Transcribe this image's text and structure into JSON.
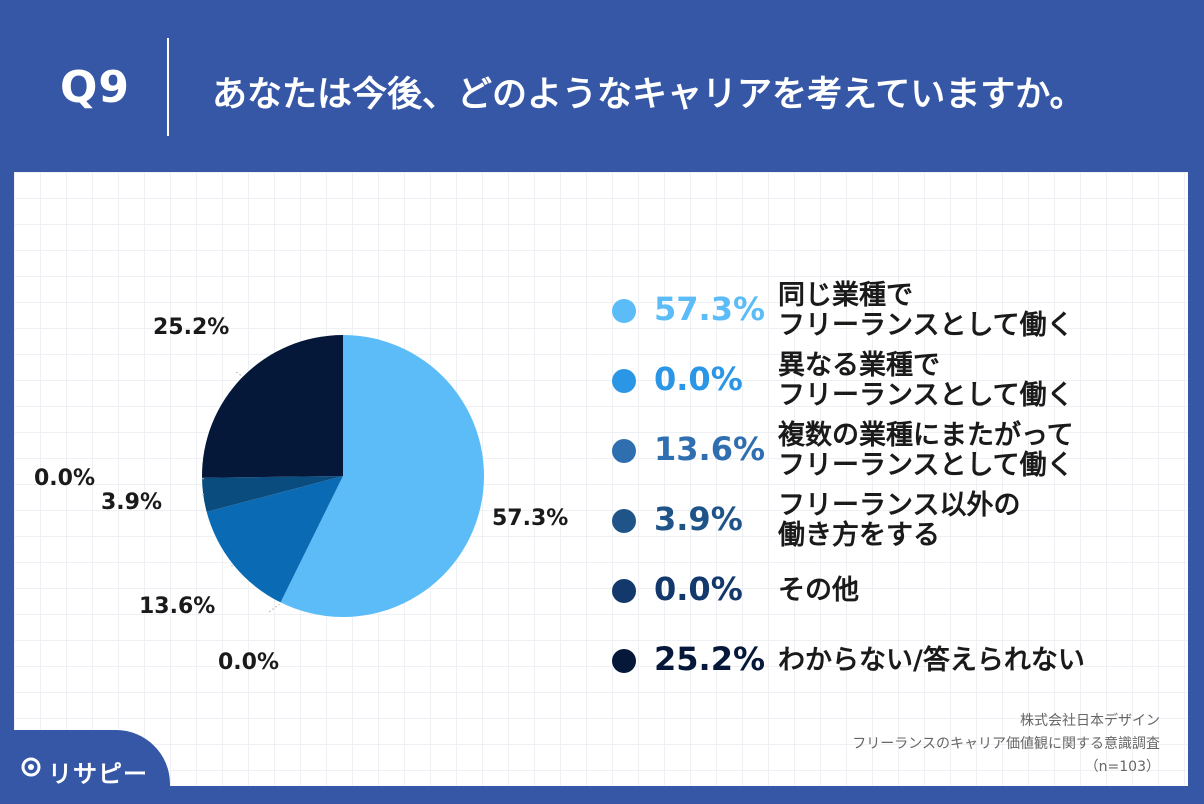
{
  "header": {
    "q_label": "Q9",
    "question": "あなたは今後、どのようなキャリアを考えていますか。"
  },
  "chart_data": {
    "type": "pie",
    "categories": [
      "同じ業種で\nフリーランスとして働く",
      "異なる業種で\nフリーランスとして働く",
      "複数の業種にまたがって\nフリーランスとして働く",
      "フリーランス以外の\n働き方をする",
      "その他",
      "わからない/答えられない"
    ],
    "values": [
      57.3,
      0.0,
      13.6,
      3.9,
      0.0,
      25.2
    ],
    "value_labels": [
      "57.3%",
      "0.0%",
      "13.6%",
      "3.9%",
      "0.0%",
      "25.2%"
    ],
    "colors": [
      "#5bbcf8",
      "#2b96e6",
      "#0a6bb4",
      "#0a4c7e",
      "#0a3465",
      "#05183a"
    ],
    "legend_position": "right",
    "start_angle_deg": 0,
    "direction": "clockwise"
  },
  "legend": [
    {
      "pct": "57.3%",
      "lines": [
        "同じ業種で",
        "フリーランスとして働く"
      ]
    },
    {
      "pct": "0.0%",
      "lines": [
        "異なる業種で",
        "フリーランスとして働く"
      ]
    },
    {
      "pct": "13.6%",
      "lines": [
        "複数の業種にまたがって",
        "フリーランスとして働く"
      ]
    },
    {
      "pct": "3.9%",
      "lines": [
        "フリーランス以外の",
        "働き方をする"
      ]
    },
    {
      "pct": "0.0%",
      "lines": [
        "その他"
      ]
    },
    {
      "pct": "25.2%",
      "lines": [
        "わからない/答えられない"
      ]
    }
  ],
  "source": {
    "company": "株式会社日本デザイン",
    "survey": "フリーランスのキャリア価値観に関する意識調査",
    "n": "（n=103）"
  },
  "logo": {
    "text": "リサピー"
  }
}
